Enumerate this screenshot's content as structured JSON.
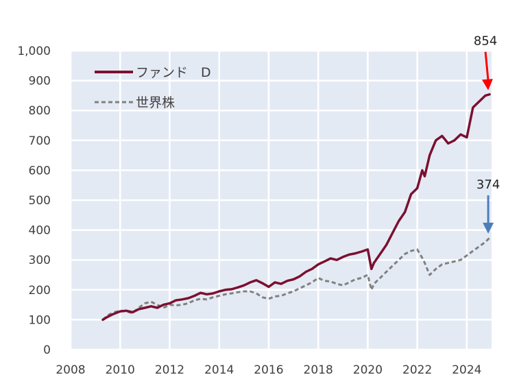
{
  "chart_data": {
    "type": "line",
    "xlim": [
      2008,
      2025
    ],
    "ylim": [
      0,
      1000
    ],
    "x_ticks": [
      "2008",
      "2010",
      "2012",
      "2014",
      "2016",
      "2018",
      "2020",
      "2022",
      "2024"
    ],
    "y_ticks": [
      "0",
      "100",
      "200",
      "300",
      "400",
      "500",
      "600",
      "700",
      "800",
      "900",
      "1,000"
    ],
    "grid": true,
    "legend_position": "top-left",
    "series": [
      {
        "name": "ファンド　D",
        "color": "#7b1030",
        "style": "solid",
        "x": [
          2009.3,
          2009.5,
          2009.75,
          2010.0,
          2010.25,
          2010.5,
          2010.75,
          2011.0,
          2011.25,
          2011.5,
          2011.75,
          2012.0,
          2012.25,
          2012.5,
          2012.75,
          2013.0,
          2013.25,
          2013.5,
          2013.75,
          2014.0,
          2014.25,
          2014.5,
          2014.75,
          2015.0,
          2015.25,
          2015.5,
          2015.75,
          2016.0,
          2016.25,
          2016.5,
          2016.75,
          2017.0,
          2017.25,
          2017.5,
          2017.75,
          2018.0,
          2018.25,
          2018.5,
          2018.75,
          2019.0,
          2019.25,
          2019.5,
          2019.75,
          2020.0,
          2020.15,
          2020.25,
          2020.5,
          2020.75,
          2021.0,
          2021.25,
          2021.5,
          2021.75,
          2022.0,
          2022.2,
          2022.3,
          2022.5,
          2022.75,
          2023.0,
          2023.25,
          2023.5,
          2023.75,
          2024.0,
          2024.25,
          2024.5,
          2024.75,
          2024.92
        ],
        "y": [
          100,
          110,
          120,
          128,
          130,
          125,
          135,
          140,
          145,
          140,
          150,
          155,
          165,
          168,
          172,
          180,
          190,
          185,
          188,
          195,
          200,
          202,
          208,
          215,
          225,
          232,
          222,
          210,
          225,
          220,
          230,
          235,
          245,
          260,
          270,
          285,
          295,
          305,
          300,
          310,
          318,
          322,
          328,
          335,
          270,
          290,
          320,
          350,
          390,
          430,
          460,
          520,
          540,
          600,
          580,
          650,
          700,
          715,
          690,
          700,
          720,
          710,
          810,
          830,
          850,
          854
        ]
      },
      {
        "name": "世界株",
        "color": "#808080",
        "style": "dashed",
        "x": [
          2009.3,
          2009.5,
          2009.75,
          2010.0,
          2010.25,
          2010.5,
          2010.75,
          2011.0,
          2011.25,
          2011.5,
          2011.75,
          2012.0,
          2012.25,
          2012.5,
          2012.75,
          2013.0,
          2013.25,
          2013.5,
          2013.75,
          2014.0,
          2014.25,
          2014.5,
          2014.75,
          2015.0,
          2015.25,
          2015.5,
          2015.75,
          2016.0,
          2016.25,
          2016.5,
          2016.75,
          2017.0,
          2017.25,
          2017.5,
          2017.75,
          2018.0,
          2018.25,
          2018.5,
          2018.75,
          2019.0,
          2019.25,
          2019.5,
          2019.75,
          2020.0,
          2020.15,
          2020.25,
          2020.5,
          2020.75,
          2021.0,
          2021.25,
          2021.5,
          2021.75,
          2022.0,
          2022.25,
          2022.5,
          2022.75,
          2023.0,
          2023.25,
          2023.5,
          2023.75,
          2024.0,
          2024.25,
          2024.5,
          2024.75,
          2024.92
        ],
        "y": [
          100,
          115,
          125,
          130,
          128,
          122,
          140,
          155,
          160,
          150,
          140,
          150,
          148,
          150,
          155,
          165,
          170,
          168,
          175,
          180,
          185,
          188,
          192,
          195,
          195,
          188,
          175,
          170,
          178,
          180,
          188,
          195,
          205,
          215,
          225,
          240,
          230,
          228,
          220,
          215,
          225,
          235,
          240,
          250,
          200,
          220,
          240,
          260,
          280,
          300,
          320,
          330,
          335,
          300,
          250,
          270,
          285,
          290,
          295,
          300,
          315,
          330,
          345,
          360,
          374
        ]
      }
    ],
    "annotations": [
      {
        "label": "854",
        "x": 2024.92,
        "y": 854,
        "color": "#ff0000"
      },
      {
        "label": "374",
        "x": 2024.92,
        "y": 374,
        "color": "#4a7ebb"
      }
    ],
    "plot_bg": "#e4eaf4"
  }
}
